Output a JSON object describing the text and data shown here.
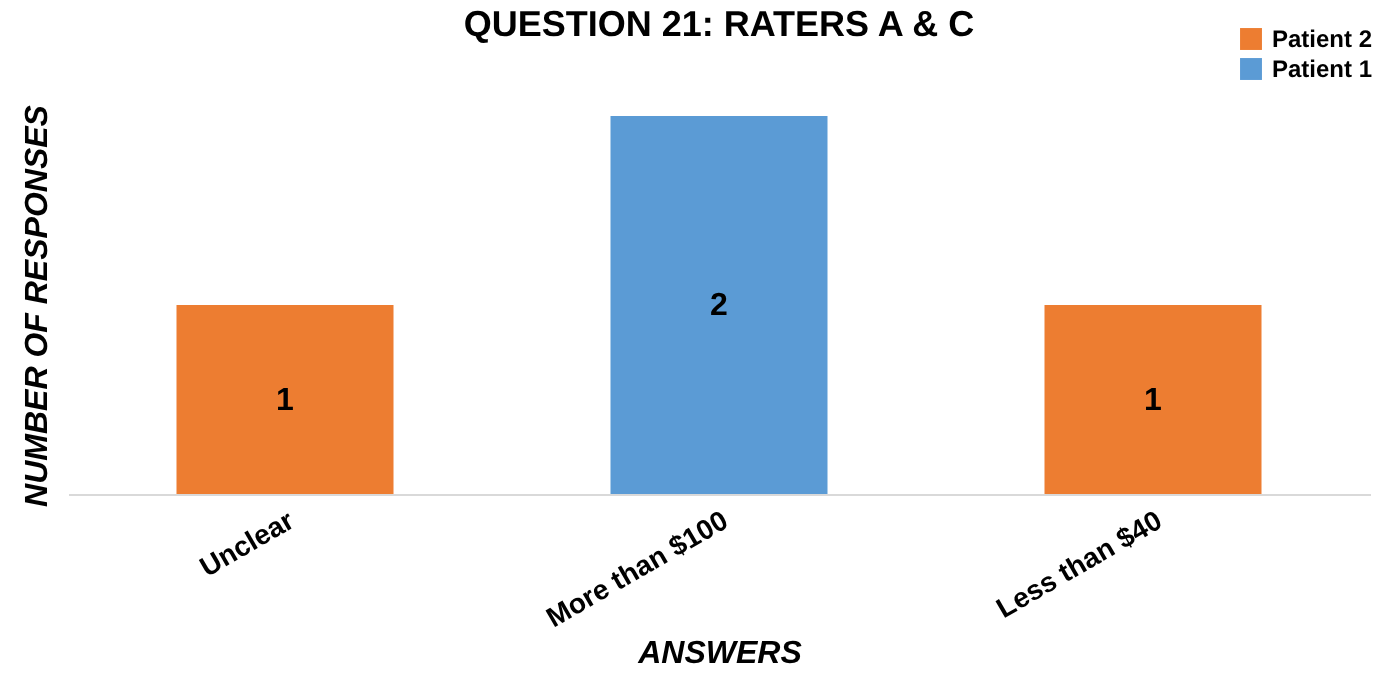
{
  "chart_data": {
    "type": "bar",
    "title": "QUESTION 21: RATERS A & C",
    "xlabel": "ANSWERS",
    "ylabel": "NUMBER OF RESPONSES",
    "categories": [
      "Unclear",
      "More than $100",
      "Less than $40"
    ],
    "series": [
      {
        "name": "Patient 2",
        "color": "#ed7d31",
        "values": [
          1,
          null,
          1
        ]
      },
      {
        "name": "Patient 1",
        "color": "#5b9bd5",
        "values": [
          null,
          2,
          null
        ]
      }
    ],
    "data_labels": true,
    "legend": "top right",
    "grid": false
  }
}
